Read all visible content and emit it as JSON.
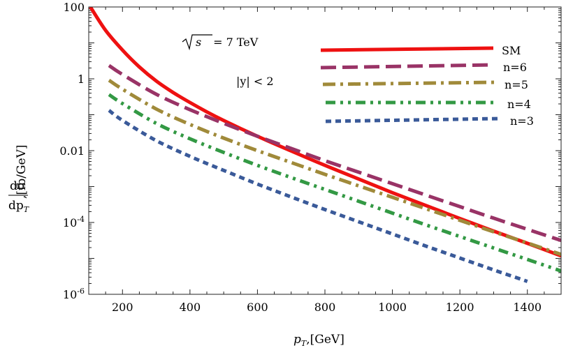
{
  "chart_data": {
    "type": "line",
    "title": "",
    "xlabel": "p_T,[GeV]",
    "ylabel": "dσ/dp_T,[fb/GeV]",
    "ylabel_parts": {
      "numerator": "dσ",
      "denominator": "dp",
      "denominator_sub": "T",
      "units": ",[fb/GeV]"
    },
    "xlabel_parts": {
      "main": "p",
      "sub": "T",
      "units": ",[GeV]"
    },
    "xlim": [
      100,
      1500
    ],
    "ylim_log10": [
      -6,
      2
    ],
    "y_scale": "log",
    "x_ticks": [
      200,
      400,
      600,
      800,
      1000,
      1200,
      1400
    ],
    "x_tick_labels": [
      "200",
      "400",
      "600",
      "800",
      "1000",
      "1200",
      "1400"
    ],
    "y_ticks_log10": [
      -6,
      -4,
      -2,
      0,
      2
    ],
    "y_tick_labels": [
      {
        "base": "10",
        "exp": "-6"
      },
      {
        "base": "10",
        "exp": "-4"
      },
      {
        "base": "0.01",
        "exp": ""
      },
      {
        "base": "1",
        "exp": ""
      },
      {
        "base": "100",
        "exp": ""
      }
    ],
    "annotations": {
      "energy": {
        "sqrt": "√",
        "s": "s",
        "rest": " = 7 TeV"
      },
      "rapidity": "|y| < 2"
    },
    "legend_position": "top-right",
    "series": [
      {
        "name": "SM",
        "color": "#ee1111",
        "dash": "solid",
        "x": [
          105,
          150,
          200,
          250,
          300,
          350,
          400,
          450,
          500,
          600,
          700,
          800,
          900,
          1000,
          1100,
          1200,
          1300,
          1400,
          1500
        ],
        "log10y": [
          2.0,
          1.35,
          0.8,
          0.33,
          -0.06,
          -0.38,
          -0.66,
          -0.92,
          -1.16,
          -1.6,
          -2.01,
          -2.41,
          -2.79,
          -3.17,
          -3.53,
          -3.89,
          -4.24,
          -4.58,
          -4.93
        ]
      },
      {
        "name": "n=6",
        "color": "#993366",
        "dash": "long-dash",
        "x": [
          160,
          200,
          300,
          400,
          500,
          600,
          700,
          800,
          900,
          1000,
          1100,
          1200,
          1300,
          1400,
          1500
        ],
        "log10y": [
          0.37,
          0.12,
          -0.43,
          -0.86,
          -1.24,
          -1.6,
          -1.94,
          -2.28,
          -2.6,
          -2.92,
          -3.24,
          -3.56,
          -3.88,
          -4.19,
          -4.5
        ]
      },
      {
        "name": "n=5",
        "color": "#a08a3a",
        "dash": "dash-dot",
        "x": [
          160,
          200,
          300,
          400,
          500,
          600,
          700,
          800,
          900,
          1000,
          1100,
          1200,
          1300,
          1400,
          1500
        ],
        "log10y": [
          -0.04,
          -0.29,
          -0.84,
          -1.27,
          -1.65,
          -2.0,
          -2.33,
          -2.66,
          -2.98,
          -3.3,
          -3.62,
          -3.94,
          -4.26,
          -4.57,
          -4.89
        ]
      },
      {
        "name": "n=4",
        "color": "#339944",
        "dash": "dash-dot-dot",
        "x": [
          160,
          200,
          300,
          400,
          500,
          600,
          700,
          800,
          900,
          1000,
          1100,
          1200,
          1300,
          1400,
          1500
        ],
        "log10y": [
          -0.44,
          -0.69,
          -1.24,
          -1.67,
          -2.05,
          -2.41,
          -2.75,
          -3.08,
          -3.41,
          -3.74,
          -4.07,
          -4.39,
          -4.71,
          -5.03,
          -5.35
        ]
      },
      {
        "name": "n=3",
        "color": "#3a5a99",
        "dash": "short-dash",
        "x": [
          160,
          200,
          300,
          400,
          500,
          600,
          700,
          800,
          900,
          1000,
          1100,
          1200,
          1300,
          1400
        ],
        "log10y": [
          -0.88,
          -1.16,
          -1.72,
          -2.16,
          -2.55,
          -2.93,
          -3.29,
          -3.64,
          -3.98,
          -4.32,
          -4.66,
          -4.99,
          -5.32,
          -5.64
        ]
      }
    ]
  }
}
